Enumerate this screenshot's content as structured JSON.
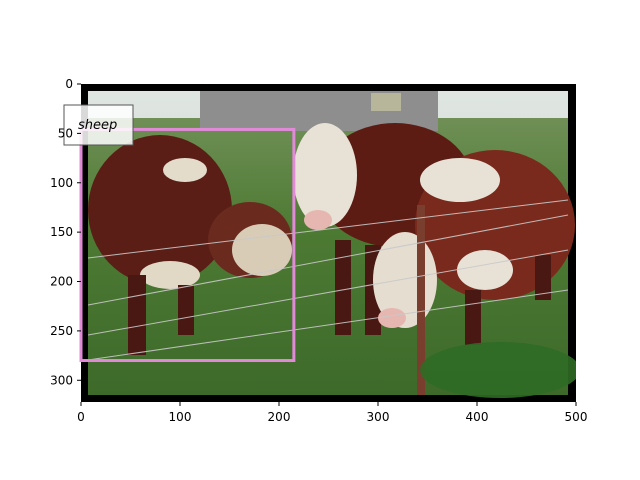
{
  "image": {
    "description_icon": "photo-cattle-by-fence",
    "width_units": 500,
    "height_units": 322
  },
  "axes": {
    "x_ticks": [
      "0",
      "100",
      "200",
      "300",
      "400",
      "500"
    ],
    "y_ticks": [
      "0",
      "50",
      "100",
      "150",
      "200",
      "250",
      "300"
    ],
    "x_tick_values": [
      0,
      100,
      200,
      300,
      400,
      500
    ],
    "y_tick_values": [
      0,
      50,
      100,
      150,
      200,
      250,
      300
    ]
  },
  "annotation": {
    "label": "sheep",
    "box": {
      "x0": 0,
      "y0": 46,
      "x1": 215,
      "y1": 280
    },
    "color": "#e08ad8"
  }
}
